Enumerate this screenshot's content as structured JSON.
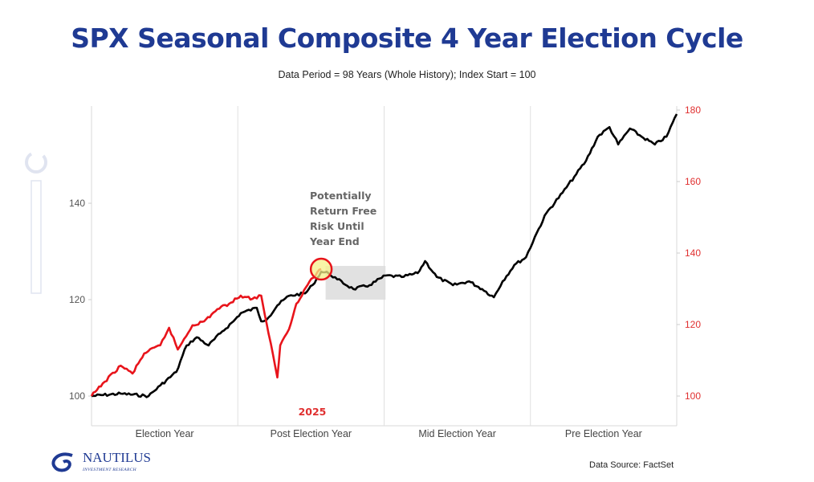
{
  "title": "SPX Seasonal Composite 4 Year Election Cycle",
  "subtitle": "Data Period = 98 Years (Whole History); Index Start = 100",
  "source": "Data Source: FactSet",
  "logo": {
    "name": "NAUTILUS",
    "tagline": "INVESTMENT RESEARCH"
  },
  "chart_data": {
    "type": "line",
    "x_categories": [
      "Election Year",
      "Post Election Year",
      "Mid Election Year",
      "Pre Election Year"
    ],
    "x_unit": "years into 4-year cycle",
    "xlim": [
      0,
      4
    ],
    "left_axis": {
      "ylim": [
        92,
        160
      ],
      "ticks": [
        100,
        120,
        140
      ],
      "color": "#555555"
    },
    "right_axis": {
      "ylim": [
        90,
        181
      ],
      "ticks": [
        100,
        120,
        140,
        160,
        180
      ],
      "color": "#e03030"
    },
    "grid": false,
    "series": [
      {
        "axis": "left",
        "color": "#000000",
        "points": [
          [
            0,
            100
          ],
          [
            0.2,
            100.5
          ],
          [
            0.39,
            100
          ],
          [
            0.47,
            102.2
          ],
          [
            0.58,
            105
          ],
          [
            0.65,
            110.5
          ],
          [
            0.72,
            112.2
          ],
          [
            0.8,
            110.5
          ],
          [
            0.88,
            113
          ],
          [
            0.97,
            115.5
          ],
          [
            1.02,
            117.2
          ],
          [
            1.13,
            118.3
          ],
          [
            1.16,
            115.5
          ],
          [
            1.21,
            116.3
          ],
          [
            1.27,
            118.8
          ],
          [
            1.35,
            120.8
          ],
          [
            1.46,
            121.3
          ],
          [
            1.51,
            123
          ],
          [
            1.57,
            125.8
          ],
          [
            1.62,
            125.5
          ],
          [
            1.68,
            124.2
          ],
          [
            1.79,
            122.2
          ],
          [
            1.9,
            123
          ],
          [
            2.01,
            125
          ],
          [
            2.12,
            124.7
          ],
          [
            2.23,
            125.5
          ],
          [
            2.28,
            128
          ],
          [
            2.36,
            124.7
          ],
          [
            2.47,
            123
          ],
          [
            2.58,
            123.8
          ],
          [
            2.67,
            122.2
          ],
          [
            2.75,
            120.5
          ],
          [
            2.81,
            123.8
          ],
          [
            2.89,
            127.2
          ],
          [
            2.97,
            128.8
          ],
          [
            3.03,
            133
          ],
          [
            3.11,
            138
          ],
          [
            3.22,
            142.2
          ],
          [
            3.3,
            145.5
          ],
          [
            3.38,
            148.8
          ],
          [
            3.46,
            153.8
          ],
          [
            3.54,
            155.8
          ],
          [
            3.6,
            152.2
          ],
          [
            3.68,
            155.5
          ],
          [
            3.76,
            153.8
          ],
          [
            3.85,
            152.2
          ],
          [
            3.93,
            153.8
          ],
          [
            4.0,
            158.5
          ]
        ]
      },
      {
        "axis": "right",
        "name": "2025",
        "color": "#e8141b",
        "points": [
          [
            0,
            100
          ],
          [
            0.09,
            104
          ],
          [
            0.2,
            108.5
          ],
          [
            0.28,
            106.3
          ],
          [
            0.36,
            111.9
          ],
          [
            0.47,
            114.2
          ],
          [
            0.53,
            119.1
          ],
          [
            0.59,
            113
          ],
          [
            0.69,
            119.8
          ],
          [
            0.77,
            120.9
          ],
          [
            0.86,
            124.3
          ],
          [
            0.94,
            125.8
          ],
          [
            1.02,
            128.1
          ],
          [
            1.1,
            127.2
          ],
          [
            1.16,
            128.1
          ],
          [
            1.21,
            117.5
          ],
          [
            1.27,
            105.2
          ],
          [
            1.29,
            114.2
          ],
          [
            1.35,
            118.7
          ],
          [
            1.4,
            125.8
          ],
          [
            1.49,
            132.1
          ],
          [
            1.57,
            135.5
          ]
        ]
      }
    ],
    "annotations": {
      "year_label": "2025",
      "callout_lines": [
        "Potentially",
        "Return Free",
        "Risk Until",
        "Year End"
      ],
      "highlight_color": "#f5f08a",
      "shaded_region": {
        "x": [
          1.6,
          2.01
        ],
        "left_y": [
          120,
          127
        ]
      }
    }
  }
}
